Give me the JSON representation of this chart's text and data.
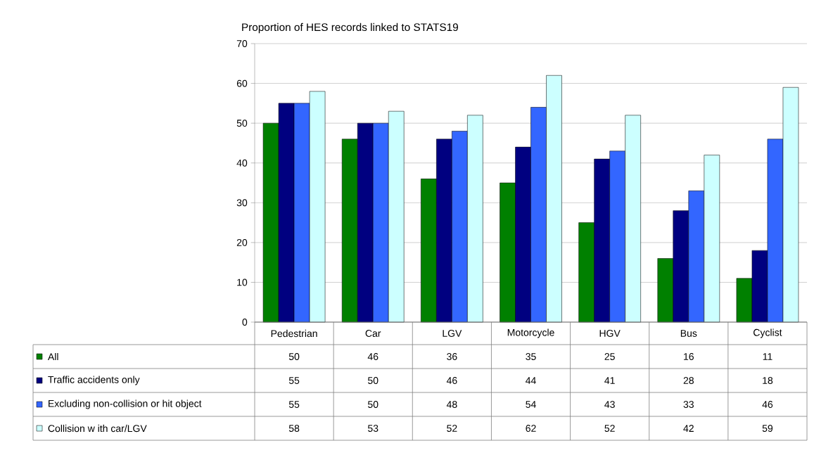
{
  "chart_data": {
    "type": "bar",
    "title": "Proportion of HES records linked to STATS19",
    "categories": [
      "Pedestrian",
      "Car",
      "LGV",
      "Motorcycle",
      "HGV",
      "Bus",
      "Cyclist"
    ],
    "series": [
      {
        "name": "All",
        "color": "#008000",
        "values": [
          50,
          46,
          36,
          35,
          25,
          16,
          11
        ]
      },
      {
        "name": "Traffic accidents only",
        "color": "#000080",
        "values": [
          55,
          50,
          46,
          44,
          41,
          28,
          18
        ]
      },
      {
        "name": "Excluding non-collision or hit object",
        "color": "#3366ff",
        "values": [
          55,
          50,
          48,
          54,
          43,
          33,
          46
        ]
      },
      {
        "name": "Collision w ith car/LGV",
        "color": "#ccffff",
        "values": [
          58,
          53,
          52,
          62,
          52,
          42,
          59
        ]
      }
    ],
    "ylim": [
      0,
      70
    ],
    "yticks": [
      0,
      10,
      20,
      30,
      40,
      50,
      60,
      70
    ],
    "grid": "y",
    "data_labels": true,
    "legend": "bottom"
  }
}
